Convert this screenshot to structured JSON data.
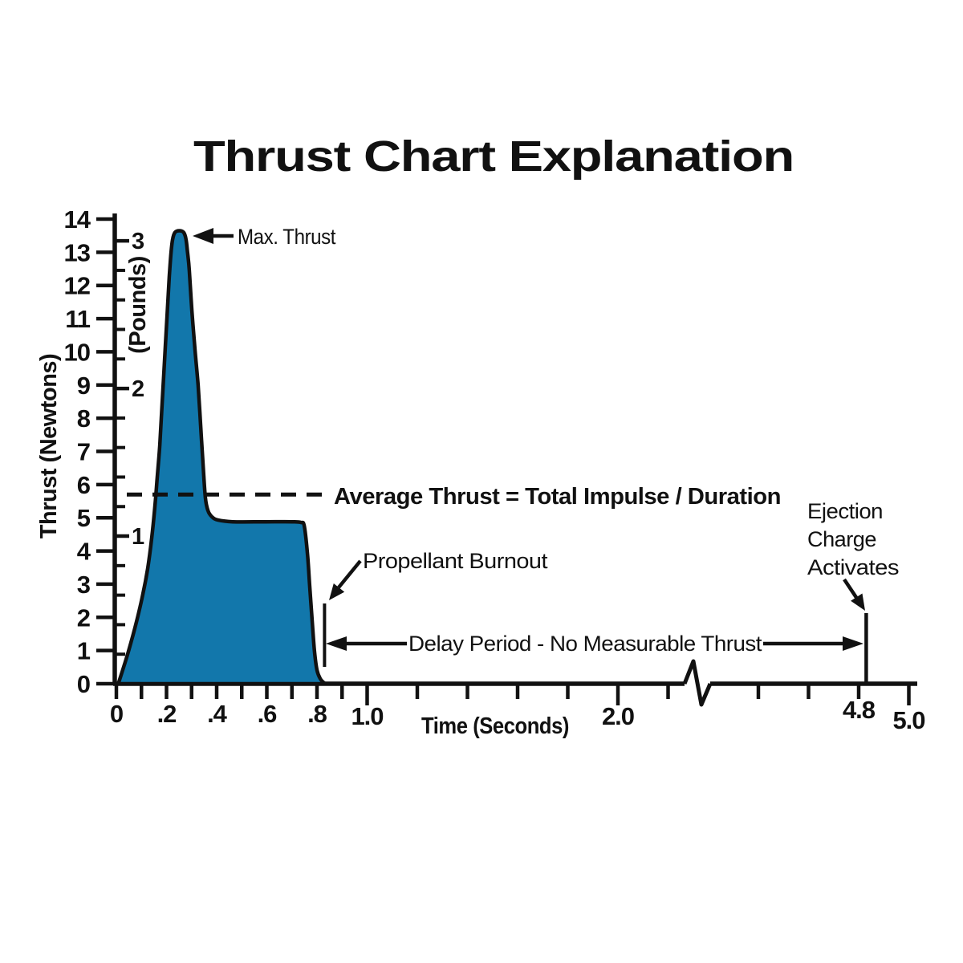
{
  "page": {
    "background": "#ffffff"
  },
  "chart_data": {
    "type": "area",
    "title": "Thrust Chart Explanation",
    "x_axis": {
      "label": "Time (Seconds)",
      "unit": "seconds",
      "range": [
        0,
        5.0
      ],
      "break_from": 2.3,
      "break_to": 4.3,
      "ticks": [
        {
          "t": 0.0,
          "label": "0"
        },
        {
          "t": 0.1
        },
        {
          "t": 0.2,
          "label": ".2"
        },
        {
          "t": 0.3
        },
        {
          "t": 0.4,
          "label": ".4"
        },
        {
          "t": 0.5
        },
        {
          "t": 0.6,
          "label": ".6"
        },
        {
          "t": 0.7
        },
        {
          "t": 0.8,
          "label": ".8"
        },
        {
          "t": 0.9
        },
        {
          "t": 1.0,
          "label": "1.0",
          "major": true,
          "dy": 3
        },
        {
          "t": 1.2
        },
        {
          "t": 1.4
        },
        {
          "t": 1.6
        },
        {
          "t": 1.8
        },
        {
          "t": 2.0,
          "label": "2.0",
          "major": true,
          "dy": 3
        },
        {
          "t": 2.2
        },
        {
          "t": 4.4
        },
        {
          "t": 4.6
        },
        {
          "t": 4.8,
          "label": "4.8",
          "dy": -5
        },
        {
          "t": 5.0,
          "label": "5.0",
          "major": true,
          "dy": 8
        }
      ]
    },
    "y_axis": {
      "label": "Thrust (Newtons)",
      "range": [
        0,
        14
      ],
      "ticks": [
        0,
        1,
        2,
        3,
        4,
        5,
        6,
        7,
        8,
        9,
        10,
        11,
        12,
        13,
        14
      ]
    },
    "y2_axis": {
      "label": "(Pounds)",
      "labeled_ticks": [
        1,
        2,
        3
      ],
      "minor_step_pounds": 0.2,
      "max_pounds": 3.0,
      "newtons_per_pound": 4.448
    },
    "series": [
      {
        "name": "thrust-curve",
        "fill": "#1277AB",
        "stroke": "#111111",
        "points": [
          [
            0.01,
            0.05
          ],
          [
            0.048,
            0.97
          ],
          [
            0.08,
            1.86
          ],
          [
            0.106,
            2.71
          ],
          [
            0.125,
            3.48
          ],
          [
            0.141,
            4.4
          ],
          [
            0.154,
            5.37
          ],
          [
            0.163,
            6.21
          ],
          [
            0.173,
            7.18
          ],
          [
            0.182,
            8.39
          ],
          [
            0.192,
            9.72
          ],
          [
            0.202,
            11.05
          ],
          [
            0.211,
            12.26
          ],
          [
            0.218,
            12.98
          ],
          [
            0.2245,
            13.4
          ],
          [
            0.234,
            13.6
          ],
          [
            0.251,
            13.65
          ],
          [
            0.268,
            13.6
          ],
          [
            0.2775,
            13.4
          ],
          [
            0.284,
            12.98
          ],
          [
            0.291,
            12.45
          ],
          [
            0.301,
            11.24
          ],
          [
            0.314,
            10.03
          ],
          [
            0.326,
            8.99
          ],
          [
            0.336,
            7.79
          ],
          [
            0.346,
            6.58
          ],
          [
            0.355,
            5.61
          ],
          [
            0.365,
            5.22
          ],
          [
            0.381,
            5.03
          ],
          [
            0.406,
            4.93
          ],
          [
            0.464,
            4.88
          ],
          [
            0.592,
            4.88
          ],
          [
            0.704,
            4.88
          ],
          [
            0.736,
            4.86
          ],
          [
            0.749,
            4.76
          ],
          [
            0.762,
            3.92
          ],
          [
            0.771,
            2.95
          ],
          [
            0.781,
            1.86
          ],
          [
            0.79,
            0.97
          ],
          [
            0.8,
            0.41
          ],
          [
            0.813,
            0.15
          ],
          [
            0.829,
            0.02
          ]
        ]
      }
    ],
    "average_thrust": {
      "value_newtons": 5.7,
      "label": "Average Thrust = Total Impulse / Duration"
    },
    "annotations": {
      "max_thrust_label": "Max. Thrust",
      "max_thrust_newtons": 13.6,
      "propellant_burnout_label": "Propellant Burnout",
      "burnout_time_s": 0.83,
      "delay_label": "Delay Period - No Measurable Thrust",
      "ejection_label_lines": [
        "Ejection",
        "Charge",
        "Activates"
      ],
      "ejection_time_s": 4.83
    }
  }
}
